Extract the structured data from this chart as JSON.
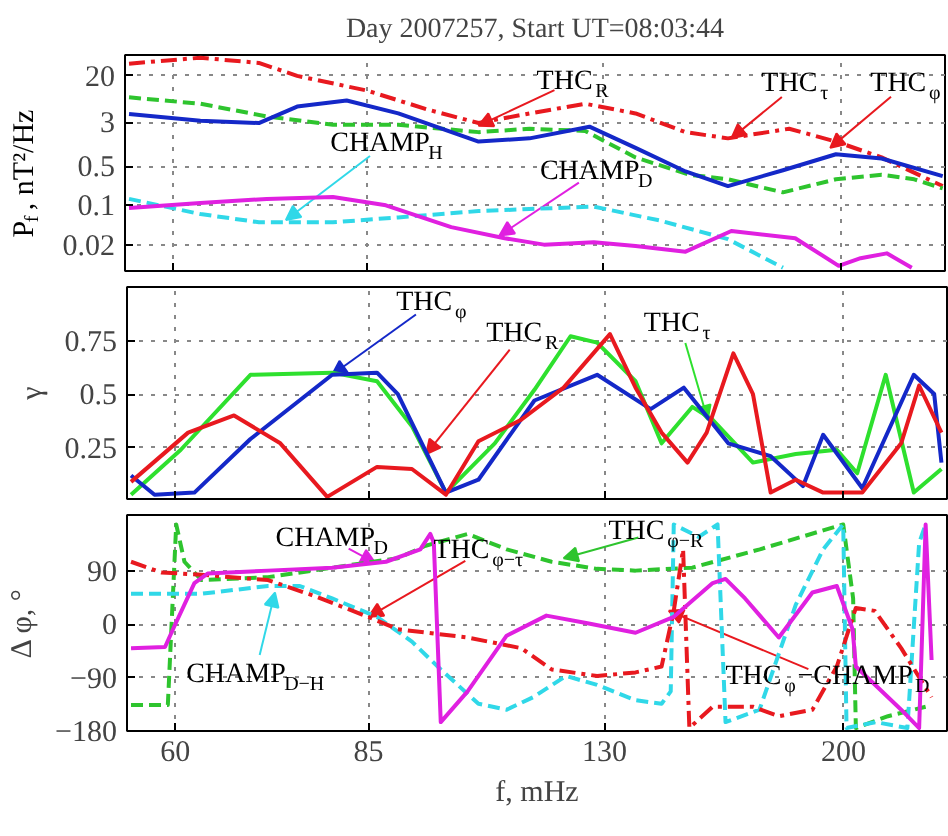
{
  "chart_data": [
    {
      "type": "line",
      "title": "Day 2007257, Start UT=08:03:44",
      "ylabel": "P$_{f}$, nT²/Hz",
      "log": "xy",
      "grid": true,
      "tick_labels": "y",
      "xlim": [
        55,
        241
      ],
      "xticks": [
        60,
        85,
        130,
        200
      ],
      "ylim": [
        0.0068,
        47
      ],
      "yticks": [
        0.02,
        0.1,
        0.5,
        3,
        20
      ],
      "series": [
        {
          "color": "#e8191f",
          "line_style": "dashdot",
          "x": [
            55.4,
            63,
            70,
            75,
            85,
            95,
            104,
            114,
            126,
            138,
            151,
            163,
            182,
            198,
            215,
            240
          ],
          "values": [
            33,
            42,
            34,
            20,
            11,
            5.0,
            2.9,
            4.3,
            6.4,
            4.3,
            2.0,
            1.55,
            2.3,
            1.36,
            0.71,
            0.22
          ]
        },
        {
          "color": "#2ec42e",
          "line_style": "dashed",
          "x": [
            55.4,
            63,
            71,
            80,
            90,
            104,
            114,
            126,
            138,
            152,
            163,
            180,
            198,
            215,
            228,
            240
          ],
          "values": [
            8.3,
            6.4,
            3.8,
            2.7,
            2.7,
            2.0,
            2.3,
            2.1,
            0.71,
            0.35,
            0.29,
            0.17,
            0.29,
            0.35,
            0.29,
            0.2
          ]
        },
        {
          "color": "#1428c8",
          "line_style": "solid",
          "x": [
            55.4,
            63,
            70,
            75,
            82,
            90,
            104,
            114,
            127,
            138,
            151,
            163,
            180,
            198,
            215,
            240
          ],
          "values": [
            4.2,
            3.2,
            2.9,
            5.7,
            7.3,
            4.3,
            1.36,
            1.55,
            2.5,
            1.05,
            0.4,
            0.22,
            0.42,
            0.81,
            0.68,
            0.33
          ]
        },
        {
          "color": "#30d8e8",
          "line_style": "dashed",
          "x": [
            55.4,
            63,
            70,
            80,
            90,
            104,
            114,
            128,
            144,
            163,
            180
          ],
          "values": [
            0.13,
            0.07,
            0.05,
            0.05,
            0.061,
            0.079,
            0.086,
            0.095,
            0.054,
            0.025,
            0.0078
          ]
        },
        {
          "color": "#e020e0",
          "line_style": "solid",
          "x": [
            55.4,
            63,
            71,
            80,
            88,
            99,
            109,
            117,
            128,
            138,
            151,
            164,
            184,
            199,
            207,
            217,
            227
          ],
          "values": [
            0.09,
            0.11,
            0.13,
            0.14,
            0.1,
            0.041,
            0.026,
            0.02,
            0.022,
            0.019,
            0.015,
            0.035,
            0.026,
            0.0084,
            0.0115,
            0.014,
            0.0078
          ]
        }
      ],
      "annotations": [
        {
          "text": "THC$_{R}$",
          "x": 104,
          "y": 2.6
        },
        {
          "text": "THC$_{τ}$",
          "x": 164,
          "y": 1.55
        },
        {
          "text": "THC$_{φ}$",
          "x": 196,
          "y": 1.05
        },
        {
          "text": "CHAMP$_{H}$",
          "x": 73.5,
          "y": 0.055
        },
        {
          "text": "CHAMP$_{D}$",
          "x": 108,
          "y": 0.029
        }
      ]
    },
    {
      "type": "line",
      "ylabel": "γ",
      "log": "x",
      "grid": true,
      "tick_labels": "y",
      "xlim": [
        55,
        241
      ],
      "xticks": [
        60,
        85,
        130,
        200
      ],
      "ylim": [
        0.01,
        1.0
      ],
      "yticks": [
        0.25,
        0.5,
        0.75
      ],
      "series": [
        {
          "color": "#2ee02e",
          "line_style": "solid",
          "x": [
            55.4,
            60.6,
            68.7,
            79.6,
            86.3,
            91.9,
            97.7,
            106.7,
            114.6,
            122.3,
            128.3,
            137.5,
            144.1,
            152.3,
            158,
            169.9,
            183.5,
            197.6,
            205,
            215.8,
            227,
            238.6
          ],
          "values": [
            0.03,
            0.24,
            0.59,
            0.6,
            0.56,
            0.35,
            0.04,
            0.27,
            0.52,
            0.77,
            0.74,
            0.56,
            0.27,
            0.44,
            0.38,
            0.18,
            0.22,
            0.24,
            0.13,
            0.59,
            0.04,
            0.15
          ]
        },
        {
          "color": "#1428c8",
          "line_style": "solid",
          "x": [
            55.4,
            57.8,
            62.1,
            68.7,
            79.6,
            86.3,
            89.6,
            97.7,
            103.6,
            114.6,
            128.3,
            141.3,
            150,
            162.5,
            175.4,
            185.9,
            192.8,
            206.9,
            227,
            235.5,
            238.6
          ],
          "values": [
            0.12,
            0.03,
            0.04,
            0.29,
            0.59,
            0.6,
            0.5,
            0.04,
            0.1,
            0.47,
            0.59,
            0.43,
            0.53,
            0.27,
            0.21,
            0.07,
            0.31,
            0.06,
            0.59,
            0.5,
            0.18
          ]
        },
        {
          "color": "#e8191f",
          "line_style": "solid",
          "x": [
            55.4,
            61.4,
            66.7,
            72.5,
            78.9,
            86.3,
            91.9,
            97.7,
            103.6,
            111.9,
            120.8,
            131.3,
            137.5,
            144.1,
            151,
            156.3,
            164,
            169.9,
            175.4,
            183.5,
            192.8,
            206.9,
            221.9,
            229.2,
            238.6
          ],
          "values": [
            0.09,
            0.32,
            0.4,
            0.27,
            0.02,
            0.16,
            0.15,
            0.03,
            0.28,
            0.38,
            0.53,
            0.78,
            0.53,
            0.32,
            0.18,
            0.32,
            0.69,
            0.5,
            0.04,
            0.1,
            0.04,
            0.04,
            0.27,
            0.54,
            0.32
          ]
        }
      ],
      "annotations": [
        {
          "text": "THC$_{φ}$",
          "x": 79.6,
          "y": 0.59
        },
        {
          "text": "THC$_{R}$",
          "x": 94.3,
          "y": 0.22
        },
        {
          "text": "THC$_{τ}$",
          "x": 156.6,
          "y": 0.38
        }
      ]
    },
    {
      "type": "line",
      "xlabel": "f, mHz",
      "ylabel": "Δ φ, °",
      "log": "x",
      "grid": true,
      "xlim": [
        55,
        241
      ],
      "xticks": [
        60,
        85,
        130,
        200
      ],
      "ylim": [
        -180,
        185
      ],
      "yticks": [
        {
          "value": -180,
          "label": "−180"
        },
        {
          "value": -90,
          "label": "−90"
        },
        0,
        90
      ],
      "series": [
        {
          "color": "#2ec42e",
          "line_style": "dashed",
          "x": [
            55.4,
            59.2,
            60.1,
            61,
            62.9,
            70.9,
            79.6,
            89.6,
            94.2,
            101.6,
            109,
            118.2,
            128.3,
            137.5,
            152.3,
            172,
            192.8,
            199.9,
            203.5,
            204.5,
            216.7,
            231.9
          ],
          "values": [
            -136,
            -136,
            169,
            106,
            75,
            80,
            96,
            112,
            133,
            153,
            127,
            106,
            94,
            91,
            96,
            127,
            159,
            169,
            44,
            -175,
            -155,
            -139
          ]
        },
        {
          "color": "#30d8e8",
          "line_style": "dashed",
          "x": [
            55.4,
            62.9,
            70.9,
            75.1,
            79.6,
            86.3,
            91.9,
            96.8,
            103.6,
            109,
            114.3,
            121.3,
            128.3,
            137.5,
            144.1,
            146.5,
            147.3,
            154.1,
            159.4,
            161.7,
            171.9,
            183.5,
            192.8,
            199.9,
            201.1,
            212,
            224.4,
            229.2,
            231.9
          ],
          "values": [
            52,
            52,
            65,
            65,
            44,
            13,
            -29,
            -76,
            -134,
            -144,
            -123,
            -87,
            -102,
            -128,
            -134,
            -113,
            169,
            148,
            169,
            -165,
            -144,
            33,
            127,
            169,
            -175,
            -165,
            -175,
            138,
            169
          ]
        },
        {
          "color": "#e8191f",
          "line_style": "dashdot",
          "x": [
            55.4,
            58.5,
            62.9,
            70.9,
            76.9,
            84.9,
            89.6,
            101.6,
            111.9,
            118.2,
            128.3,
            137.5,
            144.1,
            147.3,
            149.8,
            151.5,
            158,
            169.9,
            178,
            189.1,
            197.6,
            204.5,
            211.6,
            221.9,
            234.4
          ],
          "values": [
            106,
            88,
            84,
            75,
            49,
            13,
            -8,
            -22,
            -40,
            -76,
            -87,
            -81,
            -71,
            23,
            127,
            -175,
            -139,
            -139,
            -155,
            -144,
            -71,
            28,
            23,
            -40,
            -123
          ]
        },
        {
          "color": "#e020e0",
          "line_style": "solid",
          "x": [
            55.4,
            58.9,
            59.9,
            62.1,
            63.6,
            70.9,
            79.6,
            87.7,
            93.3,
            95,
            95.6,
            96.8,
            101.6,
            109,
            117.1,
            126.1,
            137.5,
            147.3,
            158,
            161.7,
            167.5,
            178,
            189.1,
            197.6,
            203.3,
            204.5,
            221.9,
            229.2,
            231.9,
            234.4
          ],
          "values": [
            -40,
            -38,
            -3,
            70,
            86,
            91,
            96,
            106,
            127,
            153,
            138,
            -165,
            -113,
            -19,
            15,
            2,
            -14,
            13,
            70,
            77,
            44,
            -22,
            54,
            65,
            -8,
            -71,
            -144,
            -175,
            169,
            -60
          ]
        }
      ],
      "annotations": [
        {
          "text": "CHAMP$_{D}$",
          "x": 86,
          "y": 104
        },
        {
          "text": "THC$_{φ−τ}$",
          "x": 85,
          "y": 13
        },
        {
          "text": "THC$_{φ−R}$",
          "x": 120.8,
          "y": 112
        },
        {
          "text": "CHAMP$_{D−H}$",
          "x": 71.8,
          "y": 54
        },
        {
          "text": "THC$_{φ}$−CHAMP$_{D}$",
          "x": 146,
          "y": 23
        }
      ]
    }
  ]
}
